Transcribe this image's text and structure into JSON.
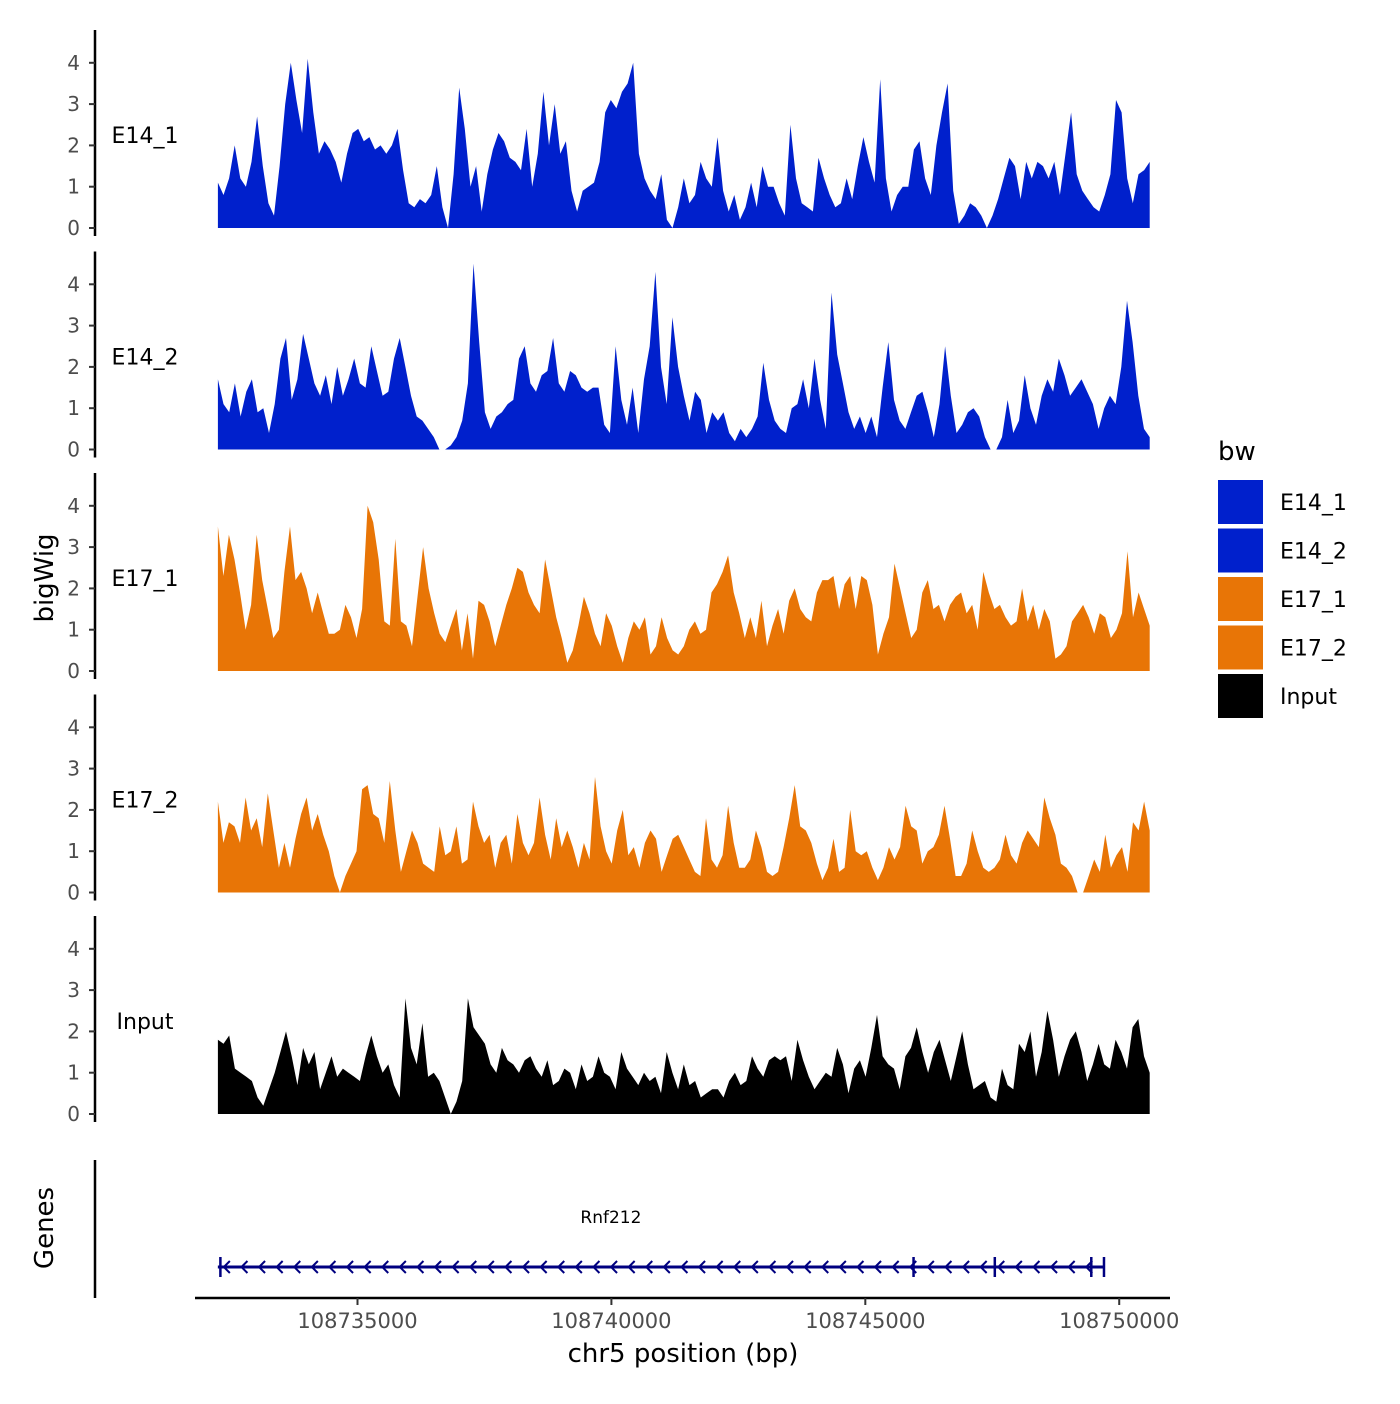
{
  "chart_data": {
    "type": "area",
    "chromosome": "chr5",
    "xlabel": "chr5 position (bp)",
    "ylabel": "bigWig",
    "genes_label": "Genes",
    "xlim": [
      108731800,
      108751000
    ],
    "x_ticks": [
      108735000,
      108740000,
      108745000,
      108750000
    ],
    "x_tick_labels": [
      "108735000",
      "108740000",
      "108745000",
      "108750000"
    ],
    "ylim": [
      0,
      4.8
    ],
    "y_ticks": [
      0,
      1,
      2,
      3,
      4
    ],
    "y_tick_labels": [
      "0",
      "1",
      "2",
      "3",
      "4"
    ],
    "x_start": 108732250,
    "x_end": 108750600,
    "legend": {
      "title": "bw",
      "position": "right",
      "entries": [
        {
          "label": "E14_1",
          "color": "#0020CC"
        },
        {
          "label": "E14_2",
          "color": "#0020CC"
        },
        {
          "label": "E17_1",
          "color": "#E87506"
        },
        {
          "label": "E17_2",
          "color": "#E87506"
        },
        {
          "label": "Input",
          "color": "#000000"
        }
      ]
    },
    "series": [
      {
        "name": "E14_1",
        "color": "#0020CC",
        "values": [
          1.1,
          0.8,
          1.2,
          2.0,
          1.2,
          1.0,
          1.6,
          2.7,
          1.5,
          0.6,
          0.3,
          1.5,
          3.0,
          4.0,
          3.1,
          2.3,
          4.1,
          2.8,
          1.8,
          2.1,
          1.9,
          1.6,
          1.1,
          1.8,
          2.3,
          2.4,
          2.1,
          2.2,
          1.9,
          2.0,
          1.8,
          2.0,
          2.4,
          1.4,
          0.6,
          0.5,
          0.7,
          0.6,
          0.8,
          1.5,
          0.5,
          0.0,
          1.3,
          3.4,
          2.4,
          1.0,
          1.5,
          0.4,
          1.3,
          1.9,
          2.3,
          2.1,
          1.7,
          1.6,
          1.4,
          2.4,
          1.0,
          1.8,
          3.3,
          2.0,
          3.0,
          1.8,
          2.1,
          0.9,
          0.4,
          0.9,
          1.0,
          1.1,
          1.6,
          2.8,
          3.1,
          2.9,
          3.3,
          3.5,
          4.0,
          1.8,
          1.2,
          0.9,
          0.7,
          1.3,
          0.2,
          0.0,
          0.5,
          1.2,
          0.6,
          0.8,
          1.6,
          1.2,
          1.0,
          2.2,
          0.9,
          0.4,
          0.8,
          0.2,
          0.5,
          1.1,
          0.5,
          1.5,
          1.0,
          1.0,
          0.6,
          0.3,
          2.5,
          1.2,
          0.6,
          0.5,
          0.4,
          1.7,
          1.2,
          0.8,
          0.5,
          0.6,
          1.2,
          0.7,
          1.5,
          2.2,
          1.6,
          1.1,
          3.6,
          1.2,
          0.4,
          0.8,
          1.0,
          1.0,
          1.9,
          2.1,
          1.2,
          0.8,
          2.0,
          2.8,
          3.5,
          0.9,
          0.1,
          0.3,
          0.6,
          0.5,
          0.3,
          0.0,
          0.3,
          0.7,
          1.2,
          1.7,
          1.5,
          0.7,
          1.6,
          1.2,
          1.6,
          1.5,
          1.2,
          1.6,
          0.8,
          1.8,
          2.8,
          1.3,
          0.9,
          0.7,
          0.5,
          0.4,
          0.8,
          1.3,
          3.1,
          2.8,
          1.2,
          0.6,
          1.3,
          1.4,
          1.6
        ]
      },
      {
        "name": "E14_2",
        "color": "#0020CC",
        "values": [
          1.7,
          1.1,
          0.9,
          1.6,
          0.8,
          1.4,
          1.7,
          0.9,
          1.0,
          0.4,
          1.1,
          2.2,
          2.7,
          1.2,
          1.7,
          2.8,
          2.2,
          1.6,
          1.3,
          1.8,
          1.1,
          2.0,
          1.3,
          1.7,
          2.2,
          1.6,
          1.5,
          2.5,
          1.9,
          1.3,
          1.4,
          2.2,
          2.7,
          2.0,
          1.3,
          0.8,
          0.7,
          0.5,
          0.3,
          0.0,
          0.0,
          0.1,
          0.3,
          0.7,
          1.6,
          4.5,
          2.6,
          0.9,
          0.5,
          0.8,
          0.9,
          1.1,
          1.2,
          2.2,
          2.5,
          1.6,
          1.4,
          1.8,
          1.9,
          2.7,
          1.6,
          1.4,
          1.9,
          1.8,
          1.5,
          1.4,
          1.5,
          1.5,
          0.6,
          0.4,
          2.5,
          1.2,
          0.6,
          1.5,
          0.4,
          1.7,
          2.5,
          4.3,
          2.0,
          1.1,
          3.2,
          2.0,
          1.3,
          0.7,
          1.4,
          1.2,
          0.4,
          0.9,
          0.7,
          0.9,
          0.4,
          0.2,
          0.5,
          0.3,
          0.5,
          0.8,
          2.1,
          1.2,
          0.7,
          0.5,
          0.4,
          1.0,
          1.1,
          1.7,
          1.0,
          2.2,
          1.2,
          0.5,
          3.8,
          2.3,
          1.6,
          0.9,
          0.5,
          0.8,
          0.4,
          0.8,
          0.3,
          1.5,
          2.6,
          1.2,
          0.7,
          0.5,
          0.9,
          1.3,
          1.4,
          0.9,
          0.3,
          1.1,
          2.5,
          1.3,
          0.4,
          0.6,
          0.9,
          1.0,
          0.8,
          0.3,
          0.0,
          0.0,
          0.3,
          1.2,
          0.4,
          0.7,
          1.8,
          1.0,
          0.6,
          1.3,
          1.7,
          1.4,
          2.2,
          1.8,
          1.3,
          1.5,
          1.7,
          1.4,
          1.1,
          0.5,
          1.0,
          1.3,
          1.1,
          2.0,
          3.6,
          2.6,
          1.3,
          0.5,
          0.3
        ]
      },
      {
        "name": "E17_1",
        "color": "#E87506",
        "values": [
          3.5,
          2.3,
          3.3,
          2.7,
          1.9,
          1.0,
          1.6,
          3.3,
          2.2,
          1.5,
          0.8,
          1.0,
          2.4,
          3.5,
          2.2,
          2.4,
          2.0,
          1.4,
          1.9,
          1.4,
          0.9,
          0.9,
          1.0,
          1.6,
          1.3,
          0.8,
          1.5,
          4.0,
          3.6,
          2.7,
          1.2,
          1.1,
          3.2,
          1.2,
          1.1,
          0.6,
          1.8,
          3.0,
          2.0,
          1.4,
          0.9,
          0.7,
          1.1,
          1.5,
          0.5,
          1.4,
          0.3,
          1.7,
          1.6,
          1.2,
          0.6,
          1.1,
          1.6,
          2.0,
          2.5,
          2.4,
          1.9,
          1.6,
          1.4,
          2.7,
          2.0,
          1.3,
          0.8,
          0.2,
          0.5,
          1.1,
          1.8,
          1.4,
          0.9,
          0.6,
          1.4,
          1.1,
          0.6,
          0.2,
          0.8,
          1.2,
          1.0,
          1.3,
          0.4,
          0.6,
          1.3,
          0.8,
          0.5,
          0.4,
          0.6,
          1.0,
          1.2,
          0.9,
          1.0,
          1.9,
          2.1,
          2.4,
          2.8,
          1.9,
          1.4,
          0.8,
          1.3,
          0.8,
          1.7,
          0.6,
          1.1,
          1.5,
          0.9,
          1.7,
          2.0,
          1.5,
          1.3,
          1.2,
          1.9,
          2.2,
          2.2,
          2.3,
          1.5,
          2.1,
          2.3,
          1.5,
          2.3,
          2.2,
          1.6,
          0.4,
          0.9,
          1.3,
          2.6,
          2.0,
          1.4,
          0.8,
          1.0,
          1.9,
          2.2,
          1.5,
          1.6,
          1.2,
          1.6,
          1.8,
          1.9,
          1.4,
          1.6,
          1.0,
          2.4,
          1.9,
          1.5,
          1.6,
          1.3,
          1.1,
          1.2,
          2.0,
          1.2,
          1.6,
          1.0,
          1.5,
          1.2,
          0.3,
          0.4,
          0.6,
          1.2,
          1.4,
          1.6,
          1.3,
          0.9,
          1.4,
          1.3,
          0.8,
          1.0,
          1.4,
          2.9,
          1.3,
          1.9,
          1.5,
          1.1
        ]
      },
      {
        "name": "E17_2",
        "color": "#E87506",
        "values": [
          2.2,
          1.2,
          1.7,
          1.6,
          1.2,
          2.3,
          1.5,
          1.8,
          1.1,
          2.4,
          1.5,
          0.6,
          1.2,
          0.6,
          1.3,
          1.9,
          2.3,
          1.5,
          1.9,
          1.4,
          1.0,
          0.4,
          0.0,
          0.4,
          0.7,
          1.0,
          2.5,
          2.6,
          1.9,
          1.8,
          1.2,
          2.7,
          1.5,
          0.5,
          1.0,
          1.5,
          1.2,
          0.7,
          0.6,
          0.5,
          1.6,
          0.9,
          1.0,
          1.6,
          0.7,
          0.8,
          2.2,
          1.6,
          1.2,
          1.4,
          0.6,
          1.2,
          1.4,
          0.7,
          1.9,
          1.2,
          0.9,
          1.2,
          2.3,
          1.4,
          0.8,
          1.8,
          1.1,
          1.5,
          1.1,
          0.6,
          1.2,
          0.8,
          2.8,
          1.6,
          1.0,
          0.7,
          1.5,
          2.0,
          0.9,
          1.1,
          0.6,
          1.2,
          1.5,
          1.3,
          0.5,
          0.9,
          1.3,
          1.4,
          1.1,
          0.8,
          0.5,
          0.4,
          1.8,
          0.8,
          0.6,
          0.9,
          2.1,
          1.2,
          0.6,
          0.6,
          0.8,
          1.5,
          1.1,
          0.5,
          0.4,
          0.5,
          1.1,
          1.8,
          2.6,
          1.6,
          1.5,
          1.2,
          0.7,
          0.3,
          0.6,
          1.3,
          0.5,
          0.6,
          2.0,
          1.0,
          0.9,
          1.0,
          0.6,
          0.3,
          0.6,
          1.1,
          0.8,
          1.1,
          2.1,
          1.6,
          1.5,
          0.7,
          1.0,
          1.1,
          1.4,
          2.1,
          1.3,
          0.4,
          0.4,
          0.7,
          1.5,
          1.0,
          0.6,
          0.5,
          0.6,
          0.8,
          1.4,
          0.9,
          0.7,
          1.2,
          1.5,
          1.3,
          1.1,
          2.3,
          1.8,
          1.4,
          0.7,
          0.6,
          0.4,
          0.0,
          0.0,
          0.4,
          0.8,
          0.5,
          1.4,
          0.6,
          0.9,
          1.1,
          0.5,
          1.7,
          1.5,
          2.2,
          1.5
        ]
      },
      {
        "name": "Input",
        "color": "#000000",
        "values": [
          1.8,
          1.7,
          1.9,
          1.1,
          1.0,
          0.9,
          0.8,
          0.4,
          0.2,
          0.6,
          1.0,
          1.5,
          2.0,
          1.4,
          0.7,
          1.6,
          1.2,
          1.5,
          0.6,
          1.0,
          1.4,
          0.9,
          1.1,
          1.0,
          0.9,
          0.8,
          1.4,
          1.9,
          1.4,
          1.0,
          1.2,
          0.7,
          0.4,
          2.8,
          1.6,
          1.2,
          2.2,
          0.9,
          1.0,
          0.8,
          0.4,
          0.0,
          0.3,
          0.8,
          2.8,
          2.1,
          1.9,
          1.7,
          1.2,
          1.0,
          1.6,
          1.3,
          1.2,
          1.0,
          1.3,
          1.4,
          1.1,
          0.9,
          1.3,
          0.7,
          0.8,
          1.1,
          1.0,
          0.6,
          1.2,
          0.8,
          0.9,
          1.4,
          1.0,
          0.9,
          0.6,
          1.5,
          1.1,
          0.9,
          0.7,
          1.0,
          0.8,
          0.9,
          0.5,
          1.5,
          1.0,
          0.6,
          1.2,
          0.7,
          0.8,
          0.4,
          0.5,
          0.6,
          0.6,
          0.4,
          0.8,
          1.0,
          0.7,
          0.8,
          1.4,
          1.1,
          0.9,
          1.3,
          1.4,
          1.3,
          1.4,
          0.8,
          1.8,
          1.3,
          0.9,
          0.6,
          0.8,
          1.0,
          0.9,
          1.6,
          1.2,
          0.5,
          1.1,
          1.3,
          0.9,
          1.6,
          2.4,
          1.4,
          1.2,
          1.1,
          0.6,
          1.4,
          1.6,
          2.1,
          1.5,
          1.0,
          1.5,
          1.8,
          1.3,
          0.8,
          1.4,
          2.0,
          1.2,
          0.6,
          0.7,
          0.8,
          0.4,
          0.3,
          1.1,
          0.7,
          0.6,
          1.7,
          1.5,
          2.0,
          0.9,
          1.5,
          2.5,
          1.8,
          0.9,
          1.4,
          1.8,
          2.0,
          1.5,
          0.8,
          1.2,
          1.7,
          1.2,
          1.1,
          1.8,
          1.5,
          1.1,
          2.1,
          2.3,
          1.4,
          1.0
        ]
      }
    ],
    "genes": [
      {
        "name": "Rnf212",
        "strand": "-",
        "start": 108732250,
        "end": 108749700,
        "exons": [
          108732300,
          108745950,
          108747550,
          108749450,
          108749700
        ]
      }
    ]
  }
}
